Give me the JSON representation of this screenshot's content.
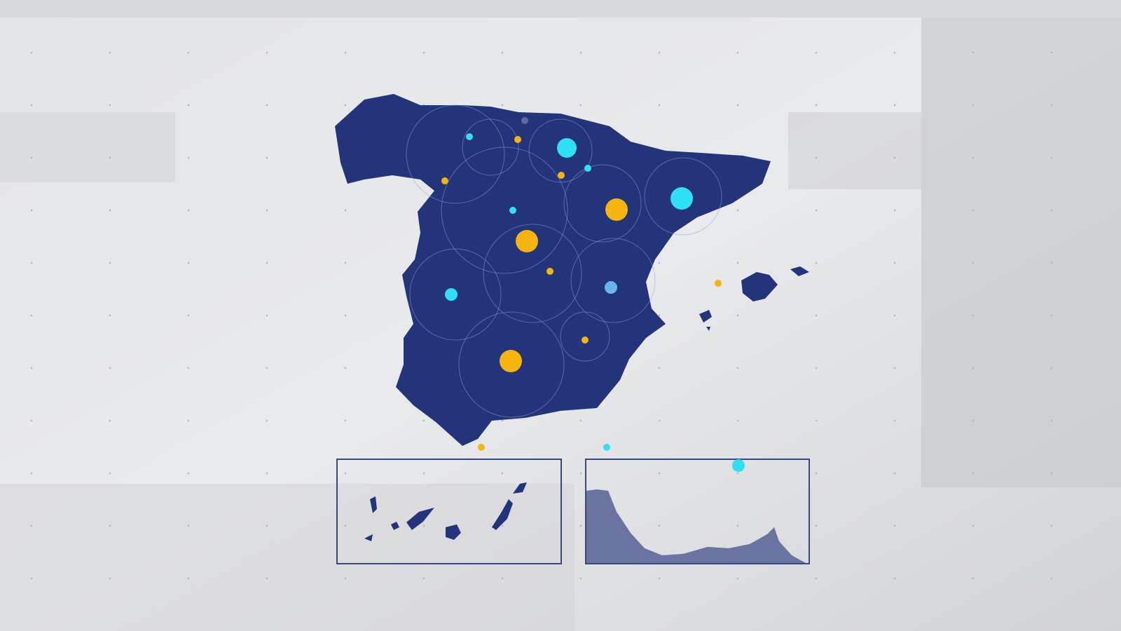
{
  "colors": {
    "background": "#dcdde0",
    "land": "#23347a",
    "accent_yellow": "#f5b50e",
    "accent_cyan": "#2fe0f5",
    "accent_lightblue": "#6ab4ec",
    "accent_gray": "#5e6a9a",
    "ring": "#8fa0d8",
    "inset_border": "#3a4780",
    "inset_land_ceuta": "#6a74a0"
  },
  "map": {
    "regions": [
      "mainland-spain",
      "balearic-islands",
      "canary-islands-inset",
      "ceuta-melilla-inset"
    ],
    "markers": [
      {
        "type": "cyan",
        "size": "large"
      },
      {
        "type": "cyan",
        "size": "large"
      },
      {
        "type": "cyan",
        "size": "medium"
      },
      {
        "type": "cyan",
        "size": "small"
      },
      {
        "type": "cyan",
        "size": "small"
      },
      {
        "type": "cyan",
        "size": "small"
      },
      {
        "type": "lightblue",
        "size": "medium"
      },
      {
        "type": "gray",
        "size": "small"
      },
      {
        "type": "yellow",
        "size": "large"
      },
      {
        "type": "yellow",
        "size": "large"
      },
      {
        "type": "yellow",
        "size": "large"
      },
      {
        "type": "yellow",
        "size": "small"
      },
      {
        "type": "yellow",
        "size": "small"
      },
      {
        "type": "yellow",
        "size": "small"
      },
      {
        "type": "yellow",
        "size": "small"
      },
      {
        "type": "yellow",
        "size": "small"
      },
      {
        "type": "yellow",
        "size": "small"
      },
      {
        "type": "yellow",
        "size": "small"
      },
      {
        "type": "cyan",
        "size": "small"
      },
      {
        "type": "cyan",
        "size": "medium"
      }
    ]
  }
}
